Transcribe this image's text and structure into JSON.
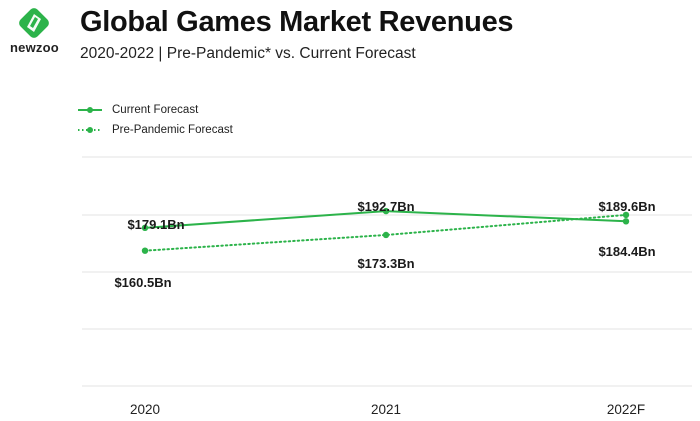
{
  "brand": {
    "name": "newzoo",
    "color": "#2cb34a"
  },
  "header": {
    "title": "Global Games Market Revenues",
    "subtitle": "2020-2022 | Pre-Pandemic* vs. Current Forecast"
  },
  "chart_data": {
    "type": "line",
    "title": "Global Games Market Revenues",
    "subtitle": "2020-2022 | Pre-Pandemic* vs. Current Forecast",
    "categories": [
      "2020",
      "2021",
      "2022F"
    ],
    "series": [
      {
        "name": "Current Forecast",
        "style": "solid",
        "color": "#2cb34a",
        "values": [
          179.1,
          192.7,
          184.4
        ],
        "labels": [
          "$179.1Bn",
          "$192.7Bn",
          "$184.4Bn"
        ]
      },
      {
        "name": "Pre-Pandemic Forecast",
        "style": "dotted",
        "color": "#2cb34a",
        "values": [
          160.5,
          173.3,
          189.6
        ],
        "labels": [
          "$160.5Bn",
          "$173.3Bn",
          "$189.6Bn"
        ]
      }
    ],
    "unit": "Bn",
    "grid": true,
    "legend": "top-left"
  }
}
